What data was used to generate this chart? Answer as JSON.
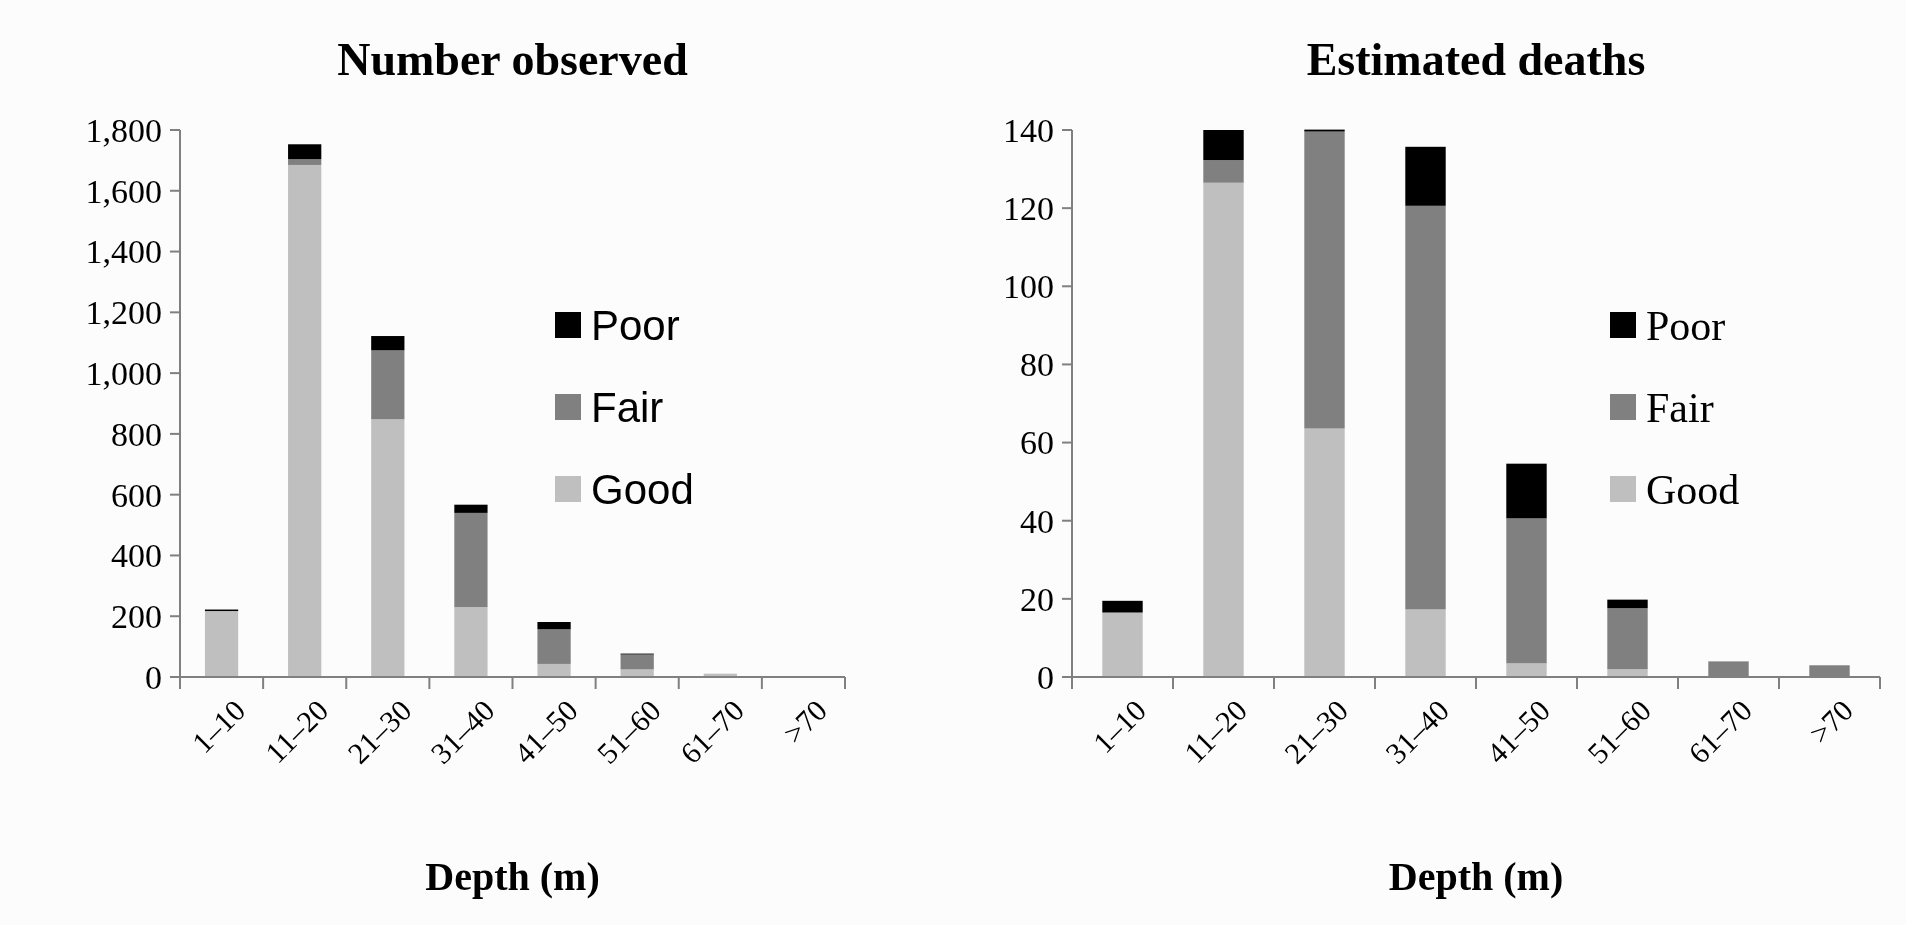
{
  "chart_data": [
    {
      "type": "bar",
      "stacked": true,
      "title": "Number observed",
      "xlabel": "Depth (m)",
      "categories": [
        "1–10",
        "11–20",
        "21–30",
        "31–40",
        "41–50",
        "51–60",
        "61–70",
        ">70"
      ],
      "series": [
        {
          "name": "Good",
          "color": "#bfbfbf",
          "values": [
            217,
            1685,
            848,
            230,
            43,
            25,
            11,
            0
          ]
        },
        {
          "name": "Fair",
          "color": "#808080",
          "values": [
            0,
            19,
            227,
            310,
            114,
            49,
            0,
            0
          ]
        },
        {
          "name": "Poor",
          "color": "#000000",
          "values": [
            5,
            49,
            47,
            27,
            24,
            3,
            0,
            0
          ]
        }
      ],
      "ylim": [
        0,
        1800
      ],
      "yticks": [
        0,
        200,
        400,
        600,
        800,
        {
          "value": 1000,
          "label": "1,000"
        },
        {
          "value": 1200,
          "label": "1,200"
        },
        {
          "value": 1400,
          "label": "1,400"
        },
        {
          "value": 1600,
          "label": "1,600"
        },
        {
          "value": 1800,
          "label": "1,800"
        }
      ],
      "legend": "right"
    },
    {
      "type": "bar",
      "stacked": true,
      "title": "Estimated deaths",
      "xlabel": "Depth (m)",
      "categories": [
        "1–10",
        "11–20",
        "21–30",
        "31–40",
        "41–50",
        "51–60",
        "61–70",
        ">70"
      ],
      "series": [
        {
          "name": "Good",
          "color": "#bfbfbf",
          "values": [
            16.5,
            126.5,
            63.6,
            17.3,
            3.5,
            2,
            0,
            0
          ]
        },
        {
          "name": "Fair",
          "color": "#808080",
          "values": [
            0,
            5.8,
            76,
            103.3,
            37.1,
            15.6,
            4,
            3
          ]
        },
        {
          "name": "Poor",
          "color": "#000000",
          "values": [
            3,
            7.7,
            0.5,
            15.1,
            14,
            2.2,
            0,
            0
          ]
        }
      ],
      "ylim": [
        0,
        140
      ],
      "yticks": [
        0,
        20,
        40,
        60,
        80,
        100,
        120,
        140
      ],
      "legend": "right"
    }
  ]
}
